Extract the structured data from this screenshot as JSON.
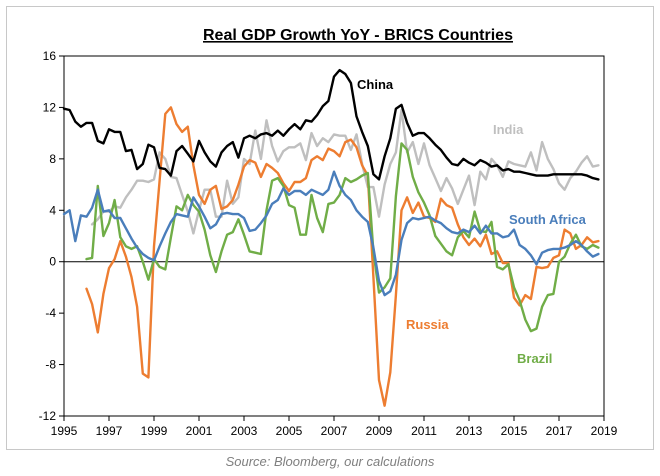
{
  "chart_data": {
    "type": "line",
    "title": "Real GDP Growth YoY - BRICS Countries",
    "xlabel": "",
    "ylabel": "",
    "xlim": [
      1995,
      2019
    ],
    "ylim": [
      -12,
      16
    ],
    "x_ticks": [
      1995,
      1997,
      1999,
      2001,
      2003,
      2005,
      2007,
      2009,
      2011,
      2013,
      2015,
      2017,
      2019
    ],
    "x_tick_labels": [
      "1995",
      "1997",
      "1999",
      "2001",
      "2003",
      "2005",
      "2007",
      "2009",
      "2011",
      "2013",
      "2015",
      "2017",
      "2019"
    ],
    "y_ticks": [
      -12,
      -8,
      -4,
      0,
      4,
      8,
      12,
      16
    ],
    "y_tick_labels": [
      "-12",
      "-8",
      "-4",
      "0",
      "4",
      "8",
      "12",
      "16"
    ],
    "grid": false,
    "series": [
      {
        "name": "China",
        "color": "#000000",
        "x": [
          1995.0,
          1995.25,
          1995.5,
          1995.75,
          1996.0,
          1996.25,
          1996.5,
          1996.75,
          1997.0,
          1997.25,
          1997.5,
          1997.75,
          1998.0,
          1998.25,
          1998.5,
          1998.75,
          1999.0,
          1999.25,
          1999.5,
          1999.75,
          2000.0,
          2000.25,
          2000.5,
          2000.75,
          2001.0,
          2001.25,
          2001.5,
          2001.75,
          2002.0,
          2002.25,
          2002.5,
          2002.75,
          2003.0,
          2003.25,
          2003.5,
          2003.75,
          2004.0,
          2004.25,
          2004.5,
          2004.75,
          2005.0,
          2005.25,
          2005.5,
          2005.75,
          2006.0,
          2006.25,
          2006.5,
          2006.75,
          2007.0,
          2007.25,
          2007.5,
          2007.75,
          2008.0,
          2008.25,
          2008.5,
          2008.75,
          2009.0,
          2009.25,
          2009.5,
          2009.75,
          2010.0,
          2010.25,
          2010.5,
          2010.75,
          2011.0,
          2011.25,
          2011.5,
          2011.75,
          2012.0,
          2012.25,
          2012.5,
          2012.75,
          2013.0,
          2013.25,
          2013.5,
          2013.75,
          2014.0,
          2014.25,
          2014.5,
          2014.75,
          2015.0,
          2015.25,
          2015.5,
          2015.75,
          2016.0,
          2016.25,
          2016.5,
          2016.75,
          2017.0,
          2017.25,
          2017.5,
          2017.75,
          2018.0,
          2018.25,
          2018.5,
          2018.75
        ],
        "values": [
          11.9,
          11.8,
          10.9,
          10.5,
          10.8,
          10.8,
          9.4,
          9.2,
          10.3,
          10.1,
          10.1,
          8.6,
          8.7,
          7.2,
          7.6,
          9.1,
          8.9,
          7.3,
          7.2,
          6.7,
          8.6,
          9.0,
          8.4,
          7.8,
          9.4,
          8.5,
          7.8,
          7.4,
          8.5,
          9.0,
          9.3,
          8.1,
          9.6,
          9.8,
          9.6,
          9.9,
          10.0,
          9.8,
          10.2,
          9.8,
          10.3,
          10.7,
          10.3,
          11.0,
          10.9,
          11.4,
          12.1,
          12.5,
          14.4,
          14.9,
          14.6,
          13.9,
          11.3,
          10.1,
          9.0,
          6.8,
          6.4,
          8.2,
          9.6,
          11.9,
          12.2,
          10.8,
          9.8,
          10.0,
          10.0,
          9.6,
          9.1,
          8.7,
          8.1,
          7.6,
          7.5,
          8.0,
          7.7,
          7.5,
          7.9,
          7.7,
          7.4,
          7.5,
          7.1,
          7.2,
          7.0,
          7.0,
          6.9,
          6.8,
          6.7,
          6.7,
          6.7,
          6.8,
          6.8,
          6.8,
          6.8,
          6.8,
          6.8,
          6.7,
          6.5,
          6.4
        ]
      },
      {
        "name": "India",
        "color": "#bfbfbf",
        "x": [
          1996.25,
          1996.5,
          1996.75,
          1997.0,
          1997.25,
          1997.5,
          1997.75,
          1998.0,
          1998.25,
          1998.5,
          1998.75,
          1999.0,
          1999.25,
          1999.5,
          1999.75,
          2000.0,
          2000.25,
          2000.5,
          2000.75,
          2001.0,
          2001.25,
          2001.5,
          2001.75,
          2002.0,
          2002.25,
          2002.5,
          2002.75,
          2003.0,
          2003.25,
          2003.5,
          2003.75,
          2004.0,
          2004.25,
          2004.5,
          2004.75,
          2005.0,
          2005.25,
          2005.5,
          2005.75,
          2006.0,
          2006.25,
          2006.5,
          2006.75,
          2007.0,
          2007.25,
          2007.5,
          2007.75,
          2008.0,
          2008.25,
          2008.5,
          2008.75,
          2009.0,
          2009.25,
          2009.5,
          2009.75,
          2010.0,
          2010.25,
          2010.5,
          2010.75,
          2011.0,
          2011.25,
          2011.5,
          2011.75,
          2012.0,
          2012.25,
          2012.5,
          2012.75,
          2013.0,
          2013.25,
          2013.5,
          2013.75,
          2014.0,
          2014.25,
          2014.5,
          2014.75,
          2015.0,
          2015.25,
          2015.5,
          2015.75,
          2016.0,
          2016.25,
          2016.5,
          2016.75,
          2017.0,
          2017.25,
          2017.5,
          2017.75,
          2018.0,
          2018.25,
          2018.5,
          2018.75
        ],
        "values": [
          2.9,
          3.3,
          3.9,
          3.9,
          4.3,
          4.2,
          5.0,
          5.6,
          6.3,
          6.3,
          6.2,
          6.4,
          8.5,
          8.0,
          6.6,
          6.5,
          5.2,
          3.9,
          2.2,
          4.0,
          5.6,
          5.6,
          3.5,
          3.5,
          6.3,
          4.5,
          5.0,
          8.0,
          7.6,
          10.2,
          8.0,
          11.0,
          9.0,
          7.8,
          8.6,
          8.9,
          8.9,
          9.2,
          7.9,
          10.0,
          9.0,
          9.6,
          9.3,
          9.9,
          9.8,
          9.8,
          8.7,
          9.9,
          7.6,
          5.8,
          5.8,
          3.5,
          6.0,
          7.6,
          8.5,
          11.8,
          8.5,
          9.3,
          7.6,
          9.2,
          7.5,
          6.5,
          5.5,
          6.5,
          5.7,
          4.5,
          5.6,
          6.7,
          4.4,
          7.0,
          6.4,
          8.0,
          7.5,
          6.6,
          7.8,
          7.6,
          7.5,
          7.4,
          8.5,
          7.1,
          9.3,
          8.0,
          7.2,
          6.1,
          5.6,
          6.5,
          7.0,
          7.7,
          8.2,
          7.4,
          7.5
        ]
      },
      {
        "name": "Russia",
        "color": "#ed7d31",
        "x": [
          1996.0,
          1996.25,
          1996.5,
          1996.75,
          1997.0,
          1997.25,
          1997.5,
          1997.75,
          1998.0,
          1998.25,
          1998.5,
          1998.75,
          1999.0,
          1999.25,
          1999.5,
          1999.75,
          2000.0,
          2000.25,
          2000.5,
          2000.75,
          2001.0,
          2001.25,
          2001.5,
          2001.75,
          2002.0,
          2002.25,
          2002.5,
          2002.75,
          2003.0,
          2003.25,
          2003.5,
          2003.75,
          2004.0,
          2004.25,
          2004.5,
          2004.75,
          2005.0,
          2005.25,
          2005.5,
          2005.75,
          2006.0,
          2006.25,
          2006.5,
          2006.75,
          2007.0,
          2007.25,
          2007.5,
          2007.75,
          2008.0,
          2008.25,
          2008.5,
          2008.75,
          2009.0,
          2009.25,
          2009.5,
          2009.75,
          2010.0,
          2010.25,
          2010.5,
          2010.75,
          2011.0,
          2011.25,
          2011.5,
          2011.75,
          2012.0,
          2012.25,
          2012.5,
          2012.75,
          2013.0,
          2013.25,
          2013.5,
          2013.75,
          2014.0,
          2014.25,
          2014.5,
          2014.75,
          2015.0,
          2015.25,
          2015.5,
          2015.75,
          2016.0,
          2016.25,
          2016.5,
          2016.75,
          2017.0,
          2017.25,
          2017.5,
          2017.75,
          2018.0,
          2018.25,
          2018.5,
          2018.75
        ],
        "values": [
          -2.1,
          -3.3,
          -5.5,
          -2.5,
          -0.5,
          0.2,
          1.6,
          0.4,
          -1.2,
          -3.5,
          -8.7,
          -9.0,
          1.2,
          6.3,
          11.5,
          12.0,
          10.7,
          10.1,
          10.5,
          7.5,
          5.2,
          4.5,
          5.6,
          5.9,
          4.1,
          4.3,
          4.8,
          6.0,
          7.4,
          7.9,
          7.7,
          6.6,
          7.6,
          7.3,
          6.9,
          6.1,
          5.5,
          6.2,
          6.2,
          6.5,
          7.9,
          8.2,
          7.9,
          8.8,
          8.6,
          8.2,
          9.3,
          9.5,
          8.9,
          7.5,
          6.7,
          -1.2,
          -9.2,
          -11.2,
          -8.6,
          -2.6,
          4.0,
          5.0,
          3.8,
          4.6,
          3.5,
          3.4,
          3.1,
          4.9,
          4.4,
          4.2,
          2.9,
          1.9,
          1.3,
          1.8,
          1.2,
          2.1,
          0.6,
          0.8,
          -0.1,
          -0.1,
          -2.8,
          -3.4,
          -2.6,
          -2.9,
          -0.4,
          -0.5,
          -0.4,
          0.3,
          0.5,
          2.5,
          2.2,
          1.0,
          1.3,
          1.9,
          1.5,
          1.6
        ]
      },
      {
        "name": "Brazil",
        "color": "#70ad47",
        "x": [
          1996.0,
          1996.25,
          1996.5,
          1996.75,
          1997.0,
          1997.25,
          1997.5,
          1997.75,
          1998.0,
          1998.25,
          1998.5,
          1998.75,
          1999.0,
          1999.25,
          1999.5,
          1999.75,
          2000.0,
          2000.25,
          2000.5,
          2000.75,
          2001.0,
          2001.25,
          2001.5,
          2001.75,
          2002.0,
          2002.25,
          2002.5,
          2002.75,
          2003.0,
          2003.25,
          2003.5,
          2003.75,
          2004.0,
          2004.25,
          2004.5,
          2004.75,
          2005.0,
          2005.25,
          2005.5,
          2005.75,
          2006.0,
          2006.25,
          2006.5,
          2006.75,
          2007.0,
          2007.25,
          2007.5,
          2007.75,
          2008.0,
          2008.25,
          2008.5,
          2008.75,
          2009.0,
          2009.25,
          2009.5,
          2009.75,
          2010.0,
          2010.25,
          2010.5,
          2010.75,
          2011.0,
          2011.25,
          2011.5,
          2011.75,
          2012.0,
          2012.25,
          2012.5,
          2012.75,
          2013.0,
          2013.25,
          2013.5,
          2013.75,
          2014.0,
          2014.25,
          2014.5,
          2014.75,
          2015.0,
          2015.25,
          2015.5,
          2015.75,
          2016.0,
          2016.25,
          2016.5,
          2016.75,
          2017.0,
          2017.25,
          2017.5,
          2017.75,
          2018.0,
          2018.25,
          2018.5,
          2018.75
        ],
        "values": [
          0.2,
          0.3,
          5.9,
          2.0,
          3.0,
          4.8,
          1.9,
          1.2,
          1.0,
          1.2,
          0.0,
          -1.4,
          0.2,
          -0.4,
          -0.6,
          1.9,
          4.3,
          4.0,
          5.2,
          4.4,
          3.9,
          2.5,
          0.5,
          -0.8,
          0.8,
          2.1,
          2.3,
          3.3,
          2.1,
          0.8,
          0.7,
          0.6,
          4.0,
          6.3,
          6.5,
          5.9,
          4.4,
          4.2,
          2.1,
          2.1,
          5.2,
          3.4,
          2.3,
          4.5,
          4.6,
          5.2,
          6.5,
          6.2,
          6.4,
          6.7,
          6.9,
          0.8,
          -2.4,
          -2.0,
          -1.3,
          5.1,
          9.2,
          8.7,
          6.6,
          5.4,
          4.6,
          3.6,
          2.0,
          1.4,
          0.8,
          0.5,
          1.9,
          2.4,
          1.9,
          3.9,
          2.4,
          2.3,
          3.1,
          -0.4,
          -0.6,
          -0.2,
          -2.0,
          -3.0,
          -4.5,
          -5.4,
          -5.2,
          -3.5,
          -2.6,
          -2.5,
          0.0,
          0.4,
          1.4,
          2.1,
          1.2,
          1.0,
          1.3,
          1.1
        ]
      },
      {
        "name": "South Africa",
        "color": "#4a7ebb",
        "x": [
          1995.0,
          1995.25,
          1995.5,
          1995.75,
          1996.0,
          1996.25,
          1996.5,
          1996.75,
          1997.0,
          1997.25,
          1997.5,
          1997.75,
          1998.0,
          1998.25,
          1998.5,
          1998.75,
          1999.0,
          1999.25,
          1999.5,
          1999.75,
          2000.0,
          2000.25,
          2000.5,
          2000.75,
          2001.0,
          2001.25,
          2001.5,
          2001.75,
          2002.0,
          2002.25,
          2002.5,
          2002.75,
          2003.0,
          2003.25,
          2003.5,
          2003.75,
          2004.0,
          2004.25,
          2004.5,
          2004.75,
          2005.0,
          2005.25,
          2005.5,
          2005.75,
          2006.0,
          2006.25,
          2006.5,
          2006.75,
          2007.0,
          2007.25,
          2007.5,
          2007.75,
          2008.0,
          2008.25,
          2008.5,
          2008.75,
          2009.0,
          2009.25,
          2009.5,
          2009.75,
          2010.0,
          2010.25,
          2010.5,
          2010.75,
          2011.0,
          2011.25,
          2011.5,
          2011.75,
          2012.0,
          2012.25,
          2012.5,
          2012.75,
          2013.0,
          2013.25,
          2013.5,
          2013.75,
          2014.0,
          2014.25,
          2014.5,
          2014.75,
          2015.0,
          2015.25,
          2015.5,
          2015.75,
          2016.0,
          2016.25,
          2016.5,
          2016.75,
          2017.0,
          2017.25,
          2017.5,
          2017.75,
          2018.0,
          2018.25,
          2018.5,
          2018.75
        ],
        "values": [
          3.7,
          4.0,
          1.6,
          3.6,
          3.5,
          4.2,
          5.6,
          3.9,
          4.0,
          3.4,
          3.4,
          2.6,
          1.8,
          1.1,
          0.6,
          0.3,
          0.1,
          1.2,
          2.2,
          3.1,
          3.7,
          3.6,
          3.5,
          5.0,
          4.3,
          3.5,
          2.6,
          2.9,
          3.7,
          3.8,
          3.7,
          3.7,
          3.4,
          2.4,
          2.5,
          3.0,
          3.6,
          4.5,
          4.8,
          5.7,
          5.2,
          5.5,
          5.5,
          5.2,
          5.6,
          5.4,
          5.2,
          5.6,
          7.0,
          5.9,
          5.2,
          4.8,
          4.0,
          3.5,
          3.1,
          1.1,
          -1.5,
          -2.6,
          -2.3,
          -1.0,
          1.7,
          3.0,
          3.4,
          3.3,
          3.4,
          3.5,
          3.2,
          3.0,
          2.6,
          2.3,
          2.2,
          2.5,
          2.3,
          2.8,
          2.2,
          2.8,
          2.2,
          2.2,
          1.9,
          2.0,
          2.5,
          1.3,
          1.0,
          0.5,
          -0.2,
          0.7,
          0.9,
          1.0,
          1.0,
          1.1,
          1.3,
          1.6,
          1.3,
          0.8,
          0.4,
          0.6
        ]
      }
    ],
    "annotations": [
      {
        "text": "China",
        "series": "China"
      },
      {
        "text": "India",
        "series": "India"
      },
      {
        "text": "South Africa",
        "series": "South Africa"
      },
      {
        "text": "Russia",
        "series": "Russia"
      },
      {
        "text": "Brazil",
        "series": "Brazil"
      }
    ]
  },
  "source_note": "Source: Bloomberg, our calculations"
}
